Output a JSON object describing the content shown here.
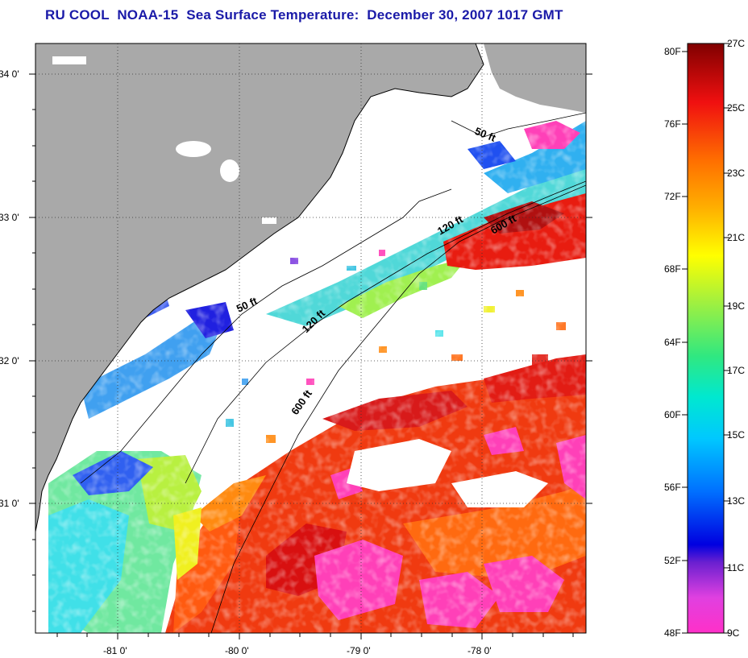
{
  "title": "RU COOL  NOAA-15  Sea Surface Temperature:  December 30, 2007 1017 GMT",
  "latitude_labels": [
    "34 0'",
    "33 0'",
    "32 0'",
    "31 0'"
  ],
  "longitude_labels": [
    "-81 0'",
    "-80 0'",
    "-79 0'",
    "-78 0'"
  ],
  "contour_labels": {
    "north_50": "50 ft",
    "north_120": "120 ft",
    "north_600": "600 ft",
    "mid_50": "50 ft",
    "mid_120": "120 ft",
    "south_600": "600 ft"
  },
  "colorbar": {
    "fahrenheit": [
      "80F",
      "76F",
      "72F",
      "68F",
      "64F",
      "60F",
      "56F",
      "52F",
      "48F"
    ],
    "celsius": [
      "27C",
      "25C",
      "23C",
      "21C",
      "19C",
      "17C",
      "15C",
      "13C",
      "11C",
      "9C"
    ]
  },
  "colors": {
    "land": "#a9a9a9",
    "cloud": "#ffffff",
    "title": "#1a1aa8"
  }
}
